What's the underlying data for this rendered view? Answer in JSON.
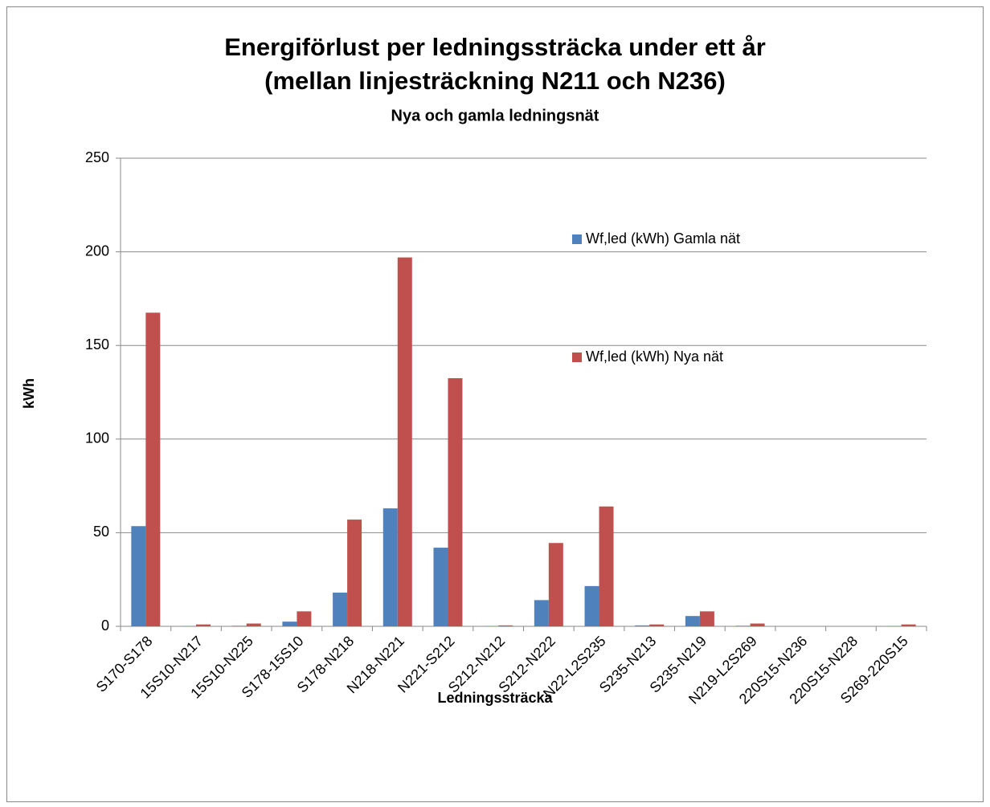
{
  "chart_data": {
    "type": "bar",
    "title": [
      "Energiförlust per ledningssträcka under ett år",
      "(mellan linjesträckning N211 och N236)"
    ],
    "subtitle": "Nya och gamla ledningsnät",
    "x_label": "Ledningssträcka",
    "y_label": "kWh",
    "categories": [
      "S170-S178",
      "15S10-N217",
      "15S10-N225",
      "S178-15S10",
      "S178-N218",
      "N218-N221",
      "N221-S212",
      "S212-N212",
      "S212-N222",
      "N22-L2S235",
      "S235-N213",
      "S235-N219",
      "N219-L2S269",
      "220S15-N236",
      "220S15-N228",
      "S269-220S15"
    ],
    "series": [
      {
        "name": "Wf,led (kWh) Gamla nät",
        "color": "#4f81bd",
        "values": [
          53.5,
          0.2,
          0.3,
          2.5,
          18,
          63,
          42,
          0.2,
          14,
          21.5,
          0.5,
          5.5,
          0.3,
          0,
          0,
          0.2
        ]
      },
      {
        "name": "Wf,led (kWh) Nya nät",
        "color": "#c0504d",
        "values": [
          167.5,
          1,
          1.5,
          8,
          57,
          197,
          132.5,
          0.5,
          44.5,
          64,
          1,
          8,
          1.5,
          0,
          0,
          1
        ]
      }
    ],
    "ylim": [
      0,
      250
    ],
    "yticks": [
      0,
      50,
      100,
      150,
      200,
      250
    ],
    "grid": true
  }
}
